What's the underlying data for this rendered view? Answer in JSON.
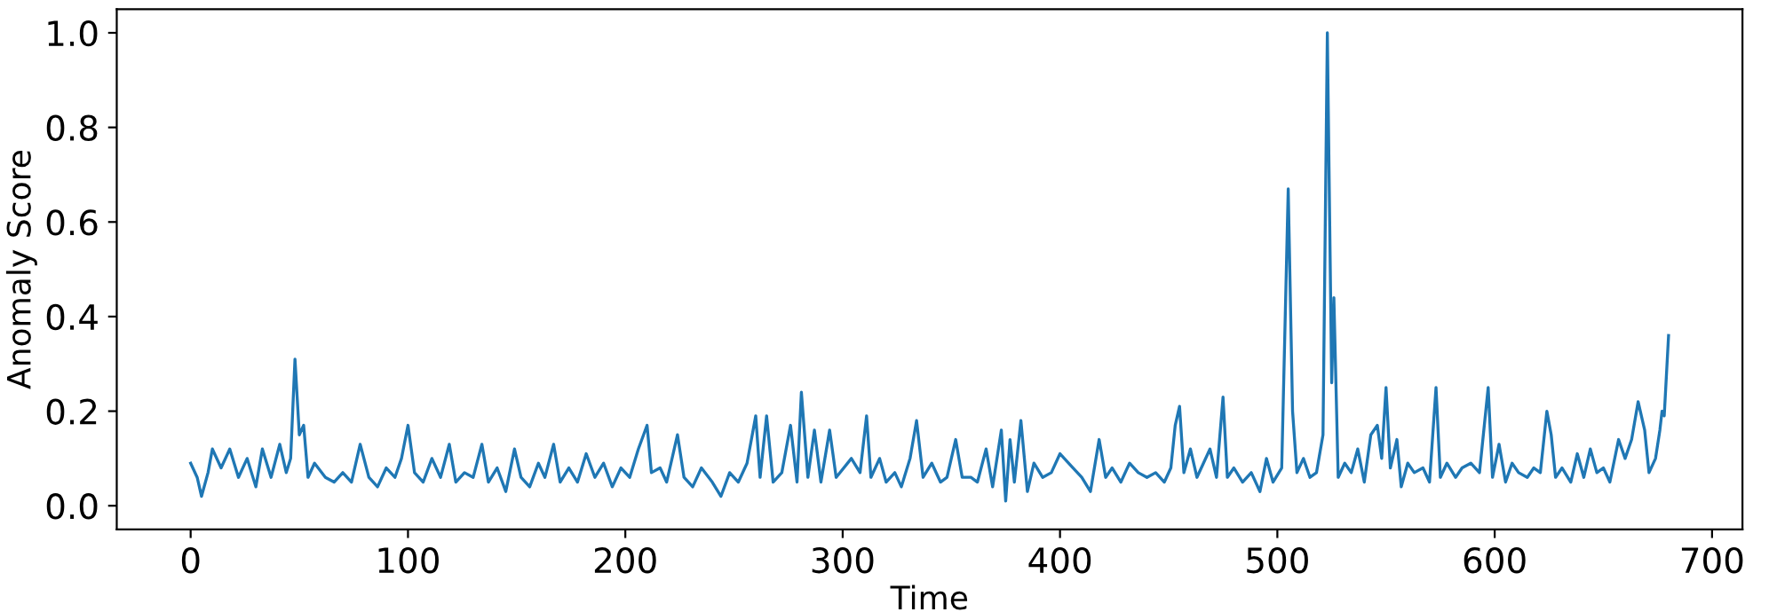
{
  "chart_data": {
    "type": "line",
    "xlabel": "Time",
    "ylabel": "Anomaly Score",
    "xlim": [
      -34,
      714
    ],
    "ylim": [
      -0.05,
      1.05
    ],
    "xticks": [
      0,
      100,
      200,
      300,
      400,
      500,
      600,
      700
    ],
    "yticks": [
      {
        "value": 0,
        "label": "0.0"
      },
      0.2,
      0.4,
      0.6,
      0.8,
      {
        "value": 1,
        "label": "1.0"
      }
    ],
    "grid": false,
    "legend": false,
    "marker": "none",
    "line_style": "solid",
    "series": [
      {
        "color": "#1f77b4",
        "x": [
          0,
          3,
          5,
          8,
          10,
          14,
          18,
          22,
          26,
          30,
          33,
          37,
          41,
          44,
          46,
          48,
          50,
          52,
          54,
          57,
          62,
          66,
          70,
          74,
          78,
          82,
          86,
          90,
          94,
          97,
          100,
          103,
          107,
          111,
          115,
          119,
          122,
          126,
          130,
          134,
          137,
          141,
          145,
          149,
          152,
          156,
          160,
          163,
          167,
          170,
          174,
          178,
          182,
          186,
          190,
          194,
          198,
          202,
          206,
          210,
          212,
          216,
          219,
          224,
          227,
          231,
          235,
          240,
          244,
          248,
          252,
          256,
          260,
          262,
          265,
          268,
          272,
          276,
          279,
          281,
          284,
          287,
          290,
          294,
          297,
          304,
          308,
          311,
          313,
          317,
          320,
          324,
          327,
          331,
          334,
          337,
          341,
          345,
          348,
          352,
          355,
          359,
          362,
          366,
          369,
          373,
          375,
          377,
          379,
          382,
          385,
          388,
          392,
          396,
          400,
          406,
          410,
          414,
          418,
          421,
          424,
          428,
          432,
          436,
          440,
          444,
          448,
          451,
          453,
          455,
          457,
          460,
          463,
          466,
          469,
          472,
          475,
          477,
          480,
          484,
          488,
          492,
          495,
          498,
          502,
          505,
          507,
          509,
          512,
          515,
          518,
          521,
          523,
          525,
          526,
          528,
          531,
          534,
          537,
          540,
          543,
          546,
          548,
          550,
          552,
          555,
          557,
          560,
          563,
          567,
          570,
          573,
          575,
          578,
          582,
          585,
          589,
          593,
          597,
          599,
          602,
          605,
          608,
          611,
          615,
          618,
          621,
          624,
          626,
          628,
          631,
          635,
          638,
          641,
          644,
          647,
          650,
          653,
          657,
          660,
          663,
          666,
          669,
          671,
          674,
          676,
          677,
          678,
          680
        ],
        "values": [
          0.09,
          0.06,
          0.02,
          0.07,
          0.12,
          0.08,
          0.12,
          0.06,
          0.1,
          0.04,
          0.12,
          0.06,
          0.13,
          0.07,
          0.1,
          0.31,
          0.15,
          0.17,
          0.06,
          0.09,
          0.06,
          0.05,
          0.07,
          0.05,
          0.13,
          0.06,
          0.04,
          0.08,
          0.06,
          0.1,
          0.17,
          0.07,
          0.05,
          0.1,
          0.06,
          0.13,
          0.05,
          0.07,
          0.06,
          0.13,
          0.05,
          0.08,
          0.03,
          0.12,
          0.06,
          0.04,
          0.09,
          0.06,
          0.13,
          0.05,
          0.08,
          0.05,
          0.11,
          0.06,
          0.09,
          0.04,
          0.08,
          0.06,
          0.12,
          0.17,
          0.07,
          0.08,
          0.05,
          0.15,
          0.06,
          0.04,
          0.08,
          0.05,
          0.02,
          0.07,
          0.05,
          0.09,
          0.19,
          0.06,
          0.19,
          0.05,
          0.07,
          0.17,
          0.05,
          0.24,
          0.06,
          0.16,
          0.05,
          0.16,
          0.06,
          0.1,
          0.07,
          0.19,
          0.06,
          0.1,
          0.05,
          0.07,
          0.04,
          0.1,
          0.18,
          0.06,
          0.09,
          0.05,
          0.06,
          0.14,
          0.06,
          0.06,
          0.05,
          0.12,
          0.04,
          0.16,
          0.01,
          0.14,
          0.05,
          0.18,
          0.03,
          0.09,
          0.06,
          0.07,
          0.11,
          0.08,
          0.06,
          0.03,
          0.14,
          0.06,
          0.08,
          0.05,
          0.09,
          0.07,
          0.06,
          0.07,
          0.05,
          0.08,
          0.17,
          0.21,
          0.07,
          0.12,
          0.06,
          0.09,
          0.12,
          0.06,
          0.23,
          0.06,
          0.08,
          0.05,
          0.07,
          0.03,
          0.1,
          0.05,
          0.08,
          0.67,
          0.2,
          0.07,
          0.1,
          0.06,
          0.07,
          0.15,
          1.0,
          0.26,
          0.44,
          0.06,
          0.09,
          0.07,
          0.12,
          0.05,
          0.15,
          0.17,
          0.1,
          0.25,
          0.08,
          0.14,
          0.04,
          0.09,
          0.07,
          0.08,
          0.05,
          0.25,
          0.06,
          0.09,
          0.06,
          0.08,
          0.09,
          0.07,
          0.25,
          0.06,
          0.13,
          0.05,
          0.09,
          0.07,
          0.06,
          0.08,
          0.07,
          0.2,
          0.15,
          0.06,
          0.08,
          0.05,
          0.11,
          0.06,
          0.12,
          0.07,
          0.08,
          0.05,
          0.14,
          0.1,
          0.14,
          0.22,
          0.16,
          0.07,
          0.1,
          0.16,
          0.2,
          0.19,
          0.36
        ]
      }
    ]
  }
}
